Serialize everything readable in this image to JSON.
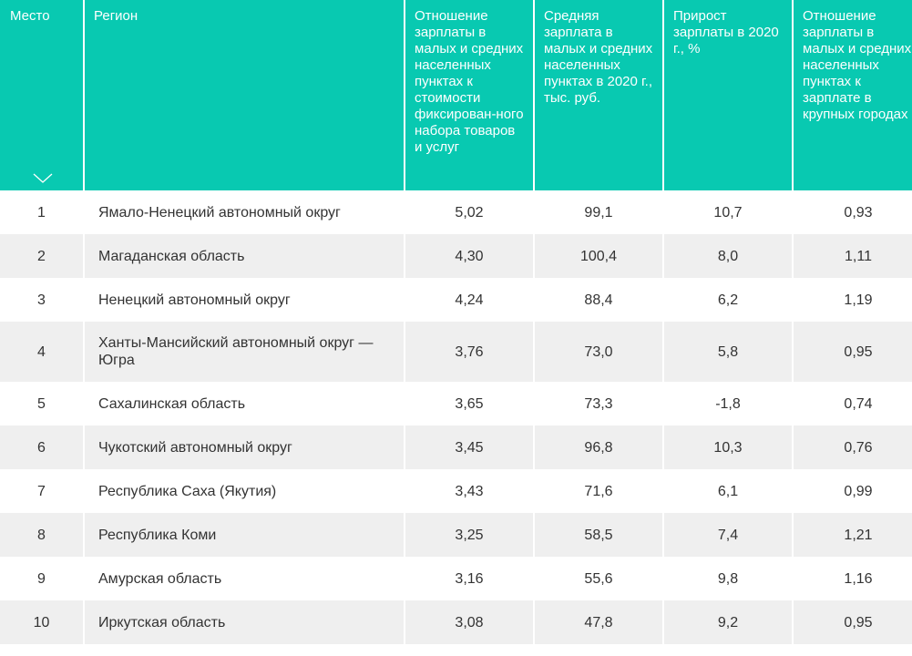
{
  "table": {
    "headers": {
      "place": "Место",
      "region": "Регион",
      "ratio_basket": "Отношение зарплаты в малых и средних населенных пунктах к стоимости фиксирован-ного набора товаров и услуг",
      "avg_salary": "Средняя зарплата в малых и средних населенных пунктах в 2020 г., тыс. руб.",
      "growth": "Прирост зарплаты в 2020 г., %",
      "ratio_cities": "Отношение зарплаты в малых и средних населенных пунктах к зарплате в крупных городах"
    },
    "sort_icon": "chevron-down-icon",
    "rows": [
      {
        "place": "1",
        "region": "Ямало-Ненецкий автономный округ",
        "ratio_basket": "5,02",
        "avg_salary": "99,1",
        "growth": "10,7",
        "ratio_cities": "0,93"
      },
      {
        "place": "2",
        "region": "Магаданская область",
        "ratio_basket": "4,30",
        "avg_salary": "100,4",
        "growth": "8,0",
        "ratio_cities": "1,11"
      },
      {
        "place": "3",
        "region": "Ненецкий автономный округ",
        "ratio_basket": "4,24",
        "avg_salary": "88,4",
        "growth": "6,2",
        "ratio_cities": "1,19"
      },
      {
        "place": "4",
        "region": "Ханты-Мансийский автономный округ — Югра",
        "ratio_basket": "3,76",
        "avg_salary": "73,0",
        "growth": "5,8",
        "ratio_cities": "0,95"
      },
      {
        "place": "5",
        "region": "Сахалинская область",
        "ratio_basket": "3,65",
        "avg_salary": "73,3",
        "growth": "-1,8",
        "ratio_cities": "0,74"
      },
      {
        "place": "6",
        "region": "Чукотский автономный округ",
        "ratio_basket": "3,45",
        "avg_salary": "96,8",
        "growth": "10,3",
        "ratio_cities": "0,76"
      },
      {
        "place": "7",
        "region": "Республика Саха (Якутия)",
        "ratio_basket": "3,43",
        "avg_salary": "71,6",
        "growth": "6,1",
        "ratio_cities": "0,99"
      },
      {
        "place": "8",
        "region": "Республика Коми",
        "ratio_basket": "3,25",
        "avg_salary": "58,5",
        "growth": "7,4",
        "ratio_cities": "1,21"
      },
      {
        "place": "9",
        "region": "Амурская область",
        "ratio_basket": "3,16",
        "avg_salary": "55,6",
        "growth": "9,8",
        "ratio_cities": "1,16"
      },
      {
        "place": "10",
        "region": "Иркутская область",
        "ratio_basket": "3,08",
        "avg_salary": "47,8",
        "growth": "9,2",
        "ratio_cities": "0,95"
      }
    ]
  },
  "colors": {
    "header_bg": "#08c9b1",
    "header_text": "#ffffff",
    "stripe": "#efefef",
    "text": "#333333"
  }
}
